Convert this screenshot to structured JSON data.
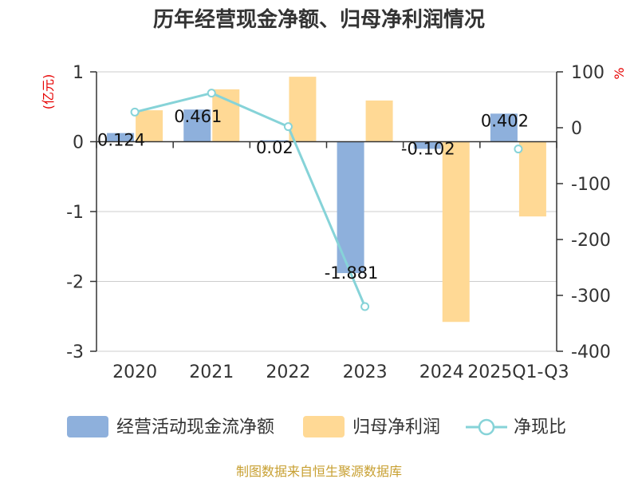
{
  "title": "历年经营现金净额、归母净利润情况",
  "source": "制图数据来自恒生聚源数据库",
  "colors": {
    "cash": "#8eb0dc",
    "profit": "#ffd995",
    "ratio": "#86d3d8",
    "unit": "#e60000",
    "source": "#c8a032"
  },
  "chart_data": {
    "type": "bar",
    "categories": [
      "2020",
      "2021",
      "2022",
      "2023",
      "2024",
      "2025Q1-Q3"
    ],
    "series": [
      {
        "name": "经营活动现金流净额",
        "type": "bar",
        "axis": "left",
        "values": [
          0.124,
          0.461,
          0.02,
          -1.881,
          -0.102,
          0.402
        ],
        "labels": [
          "0.124",
          "0.461",
          "0.02",
          "-1.881",
          "-0.102",
          "0.402"
        ]
      },
      {
        "name": "归母净利润",
        "type": "bar",
        "axis": "left",
        "values": [
          0.45,
          0.75,
          0.93,
          0.59,
          -2.58,
          -1.07
        ]
      },
      {
        "name": "净现比",
        "type": "line",
        "axis": "right",
        "values": [
          28,
          62,
          2,
          -320,
          null,
          -38
        ]
      }
    ],
    "y_left": {
      "unit": "(亿元)",
      "ylim": [
        -3,
        1
      ],
      "ticks": [
        "1",
        "0",
        "-1",
        "-2",
        "-3"
      ]
    },
    "y_right": {
      "unit": "%",
      "ylim": [
        -400,
        100
      ],
      "ticks": [
        "100",
        "0",
        "-100",
        "-200",
        "-300",
        "-400"
      ]
    },
    "grid": true,
    "legend_position": "bottom"
  }
}
